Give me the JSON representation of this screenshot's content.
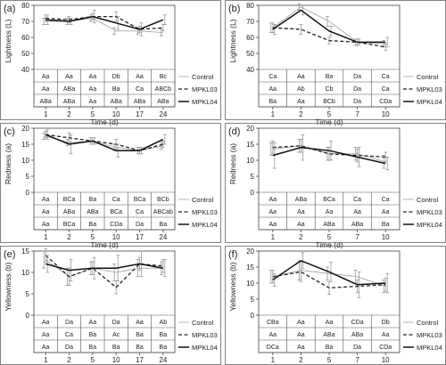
{
  "colors": {
    "control": "#b0b0b0",
    "mpkl03": "#222222",
    "mpkl04": "#111111",
    "err": "#8a8a8a"
  },
  "chart_data": [
    {
      "type": "line",
      "panel_label": "(a)",
      "ylabel": "Lightness (L)",
      "xlabel": "Time (d)",
      "x": [
        "1",
        "2",
        "5",
        "10",
        "17",
        "24"
      ],
      "ylim": [
        40,
        80
      ],
      "yticks": [
        40,
        50,
        60,
        70,
        80
      ],
      "series": [
        {
          "name": "Control",
          "values": [
            70,
            70,
            72,
            64,
            64,
            63
          ],
          "err": [
            2,
            2,
            2,
            2,
            2,
            2
          ]
        },
        {
          "name": "MPKL03",
          "values": [
            72,
            71,
            73,
            73,
            65,
            66
          ],
          "err": [
            2,
            2,
            2,
            3,
            2,
            2
          ]
        },
        {
          "name": "MPKL04",
          "values": [
            71,
            70,
            73,
            69,
            65,
            71
          ],
          "err": [
            3,
            2,
            4,
            4,
            4,
            3
          ]
        }
      ],
      "letters": [
        [
          "Aa",
          "Aa",
          "Aa",
          "Db",
          "Aa",
          "Bc"
        ],
        [
          "Aa",
          "ABa",
          "Aa",
          "Ba",
          "Ca",
          "ABCb"
        ],
        [
          "ABa",
          "ABa",
          "Aa",
          "ABa",
          "ABa",
          "ABa"
        ]
      ]
    },
    {
      "type": "line",
      "panel_label": "(b)",
      "ylabel": "Lightness (L)",
      "xlabel": "Time (d)",
      "x": [
        "1",
        "2",
        "5",
        "7",
        "10"
      ],
      "ylim": [
        40,
        80
      ],
      "yticks": [
        40,
        50,
        60,
        70,
        80
      ],
      "series": [
        {
          "name": "Control",
          "values": [
            66,
            79,
            70,
            57,
            56
          ],
          "err": [
            3,
            2,
            3,
            2,
            2
          ]
        },
        {
          "name": "MPKL03",
          "values": [
            66,
            65,
            58,
            57,
            54
          ],
          "err": [
            3,
            3,
            2,
            2,
            2
          ]
        },
        {
          "name": "MPKL04",
          "values": [
            65,
            77,
            64,
            57,
            57
          ],
          "err": [
            3,
            3,
            3,
            2,
            3
          ]
        }
      ],
      "letters": [
        [
          "Ca",
          "Aa",
          "Ba",
          "Da",
          "Ca"
        ],
        [
          "Aa",
          "Ab",
          "Cb",
          "Da",
          "Ca"
        ],
        [
          "Ba",
          "Aa",
          "BCb",
          "Da",
          "CDa"
        ]
      ]
    },
    {
      "type": "line",
      "panel_label": "(c)",
      "ylabel": "Redness (a)",
      "xlabel": "Time (d)",
      "x": [
        "1",
        "2",
        "5",
        "10",
        "17",
        "24"
      ],
      "ylim": [
        0,
        20
      ],
      "yticks": [
        0,
        5,
        10,
        15,
        20
      ],
      "series": [
        {
          "name": "Control",
          "values": [
            17.5,
            15.5,
            16,
            14,
            13,
            14.5
          ],
          "err": [
            1,
            1,
            1,
            1,
            1,
            1
          ]
        },
        {
          "name": "MPKL03",
          "values": [
            18,
            17,
            16,
            15,
            13,
            15
          ],
          "err": [
            1,
            1.5,
            1,
            1.5,
            1,
            1
          ]
        },
        {
          "name": "MPKL04",
          "values": [
            18,
            15,
            16,
            13,
            13,
            16.5
          ],
          "err": [
            1.5,
            3,
            1,
            2,
            1,
            1.5
          ]
        }
      ],
      "letters": [
        [
          "Aa",
          "BCa",
          "Ba",
          "Ca",
          "BCa",
          "BCb"
        ],
        [
          "Aa",
          "ABa",
          "ABa",
          "BCa",
          "Ca",
          "ABCab"
        ],
        [
          "Aa",
          "BCa",
          "Ba",
          "CDa",
          "Da",
          "Ba"
        ]
      ]
    },
    {
      "type": "line",
      "panel_label": "(d)",
      "ylabel": "Redness (a)",
      "xlabel": "Time (d)",
      "x": [
        "1",
        "2",
        "5",
        "7",
        "10"
      ],
      "ylim": [
        0,
        20
      ],
      "yticks": [
        0,
        5,
        10,
        15,
        20
      ],
      "series": [
        {
          "name": "Control",
          "values": [
            13.5,
            14.5,
            12,
            12,
            9.5
          ],
          "err": [
            2,
            2,
            2,
            2,
            2
          ]
        },
        {
          "name": "MPKL03",
          "values": [
            14,
            14.5,
            12,
            11.5,
            11
          ],
          "err": [
            2,
            2,
            2,
            2,
            1.5
          ]
        },
        {
          "name": "MPKL04",
          "values": [
            11.5,
            14,
            13,
            11,
            9
          ],
          "err": [
            4,
            4,
            3,
            3,
            2
          ]
        }
      ],
      "letters": [
        [
          "Aa",
          "ABa",
          "BCa",
          "Ca",
          "Ca"
        ],
        [
          "Aa",
          "Aa",
          "Aa",
          "Aa",
          "Aa"
        ],
        [
          "Aa",
          "Aa",
          "ABa",
          "ABa",
          "Ba"
        ]
      ]
    },
    {
      "type": "line",
      "panel_label": "(e)",
      "ylabel": "Yellowness (b)",
      "xlabel": "Time (d)",
      "x": [
        "1",
        "2",
        "5",
        "10",
        "17",
        "24"
      ],
      "ylim": [
        0,
        15
      ],
      "yticks": [
        0,
        5,
        10,
        15
      ],
      "series": [
        {
          "name": "Control",
          "values": [
            13,
            9,
            11,
            10,
            11,
            11
          ],
          "err": [
            2,
            2,
            1.5,
            2,
            2,
            1.5
          ]
        },
        {
          "name": "MPKL03",
          "values": [
            14,
            9,
            11,
            6.5,
            12,
            11.5
          ],
          "err": [
            1.5,
            2,
            1.5,
            1.5,
            1.5,
            1.5
          ]
        },
        {
          "name": "MPKL04",
          "values": [
            12,
            10.5,
            11,
            11,
            12,
            11
          ],
          "err": [
            2,
            2.5,
            2.5,
            3,
            3,
            2
          ]
        }
      ],
      "letters": [
        [
          "Aa",
          "Da",
          "Aa",
          "Da",
          "Aa",
          "Ab"
        ],
        [
          "Aa",
          "Ca",
          "Ba",
          "Ac",
          "Ba",
          "Ba"
        ],
        [
          "Aa",
          "Da",
          "Ba",
          "Ba",
          "Ba",
          "Ba"
        ]
      ]
    },
    {
      "type": "line",
      "panel_label": "(f)",
      "ylabel": "Yellowness (b)",
      "xlabel": "Time (d)",
      "x": [
        "1",
        "2",
        "5",
        "7",
        "10"
      ],
      "ylim": [
        0,
        20
      ],
      "yticks": [
        0,
        5,
        10,
        15,
        20
      ],
      "series": [
        {
          "name": "Control",
          "values": [
            12,
            14,
            13,
            12,
            9
          ],
          "err": [
            2,
            3,
            2,
            2,
            2
          ]
        },
        {
          "name": "MPKL03",
          "values": [
            12,
            13.5,
            8.5,
            9,
            9.5
          ],
          "err": [
            2,
            3,
            2,
            2,
            2
          ]
        },
        {
          "name": "MPKL04",
          "values": [
            11,
            17,
            13.5,
            9.5,
            10
          ],
          "err": [
            2,
            2.5,
            3,
            4,
            3
          ]
        }
      ],
      "letters": [
        [
          "CBa",
          "Aa",
          "Aa",
          "CDa",
          "Db"
        ],
        [
          "Aa",
          "Aa",
          "ABa",
          "ABa",
          "Aa"
        ],
        [
          "DCa",
          "Aa",
          "Ba",
          "Da",
          "CDa"
        ]
      ]
    }
  ]
}
